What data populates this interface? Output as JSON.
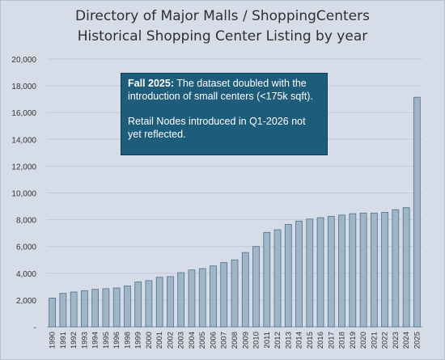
{
  "chart_data": {
    "type": "bar",
    "title": "Directory of Major Malls / ShoppingCenters",
    "subtitle": "Historical Shopping Center Listing by year",
    "xlabel": "",
    "ylabel": "",
    "ylim": [
      0,
      20000
    ],
    "yticks": [
      0,
      2000,
      4000,
      6000,
      8000,
      10000,
      12000,
      14000,
      16000,
      18000,
      20000
    ],
    "ytick_labels": [
      "-",
      "2,000",
      "4,000",
      "6,000",
      "8,000",
      "10,000",
      "12,000",
      "14,000",
      "16,000",
      "18,000",
      "20,000"
    ],
    "grid": true,
    "legend": "none",
    "categories": [
      "1990",
      "1991",
      "1992",
      "1993",
      "1994",
      "1995",
      "1996",
      "1998",
      "1999",
      "2000",
      "2001",
      "2002",
      "2003",
      "2004",
      "2005",
      "2006",
      "2007",
      "2008",
      "2009",
      "2010",
      "2011",
      "2012",
      "2013",
      "2014",
      "2015",
      "2016",
      "2017",
      "2018",
      "2019",
      "2020",
      "2021",
      "2022",
      "2023",
      "2024",
      "2025"
    ],
    "values": [
      2150,
      2500,
      2600,
      2700,
      2800,
      2850,
      2900,
      3050,
      3350,
      3450,
      3700,
      3750,
      4050,
      4250,
      4350,
      4550,
      4800,
      5000,
      5550,
      6000,
      7050,
      7250,
      7650,
      7900,
      8050,
      8150,
      8250,
      8350,
      8450,
      8500,
      8500,
      8550,
      8750,
      8900,
      17150
    ],
    "bar_color": "#9fb6c8",
    "bar_stroke": "#4f6f88",
    "annotation": {
      "bold": "Fall 2025:",
      "text1": " The dataset doubled with the introduction of small centers (<175k sqft).",
      "text2": "Retail Nodes introduced in Q1-2026 not yet reflected."
    }
  }
}
